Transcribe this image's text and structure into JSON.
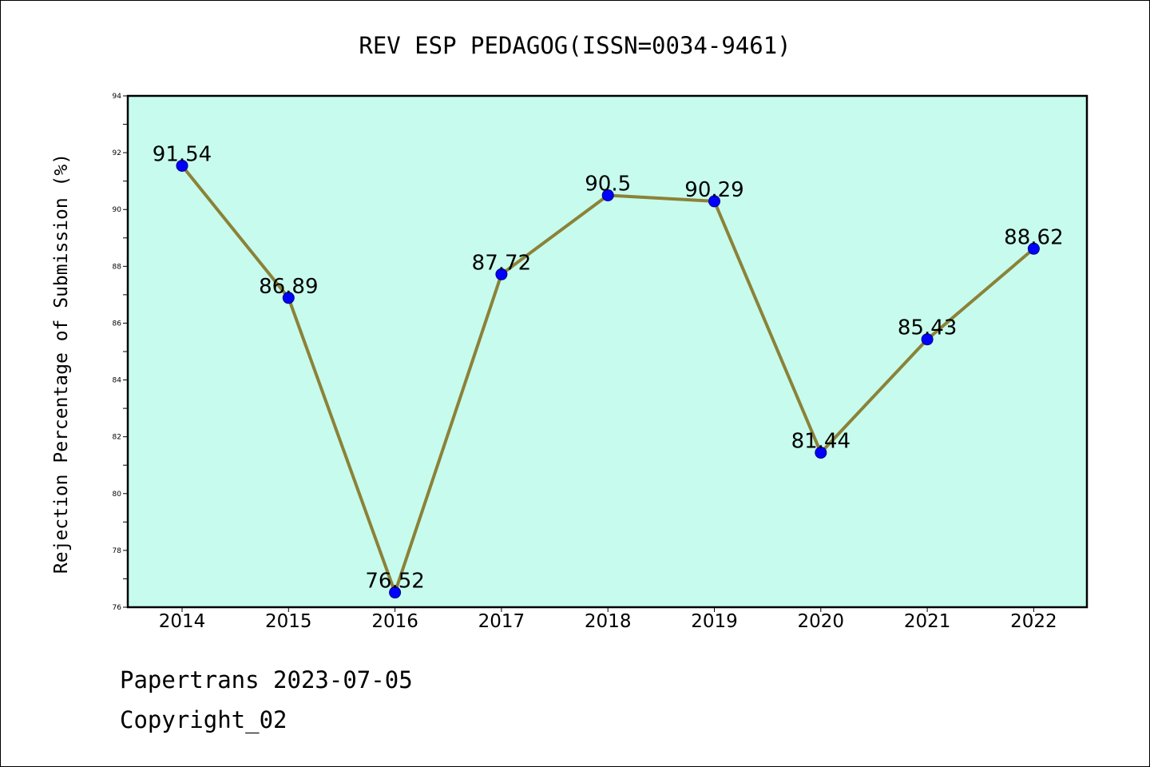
{
  "chart_data": {
    "type": "line",
    "title": "REV ESP PEDAGOG(ISSN=0034-9461)",
    "xlabel": "",
    "ylabel": "Rejection Percentage of Submission (%)",
    "categories": [
      "2014",
      "2015",
      "2016",
      "2017",
      "2018",
      "2019",
      "2020",
      "2021",
      "2022"
    ],
    "series": [
      {
        "values": [
          91.54,
          86.89,
          76.52,
          87.72,
          90.5,
          90.29,
          81.44,
          85.43,
          88.62
        ],
        "labels": [
          "91.54",
          "86.89",
          "76.52",
          "87.72",
          "90.5",
          "90.29",
          "81.44",
          "85.43",
          "88.62"
        ]
      }
    ],
    "ylim": [
      76,
      94
    ],
    "yticks": [
      76,
      78,
      80,
      82,
      84,
      86,
      88,
      90,
      92,
      94
    ],
    "grid": false,
    "legend": "none",
    "colors": {
      "plot_background": "#c7fbed",
      "line": "#8b8238",
      "marker": "#0000ff"
    }
  },
  "footer": {
    "line1": "Papertrans 2023-07-05",
    "line2": "Copyright_02"
  }
}
